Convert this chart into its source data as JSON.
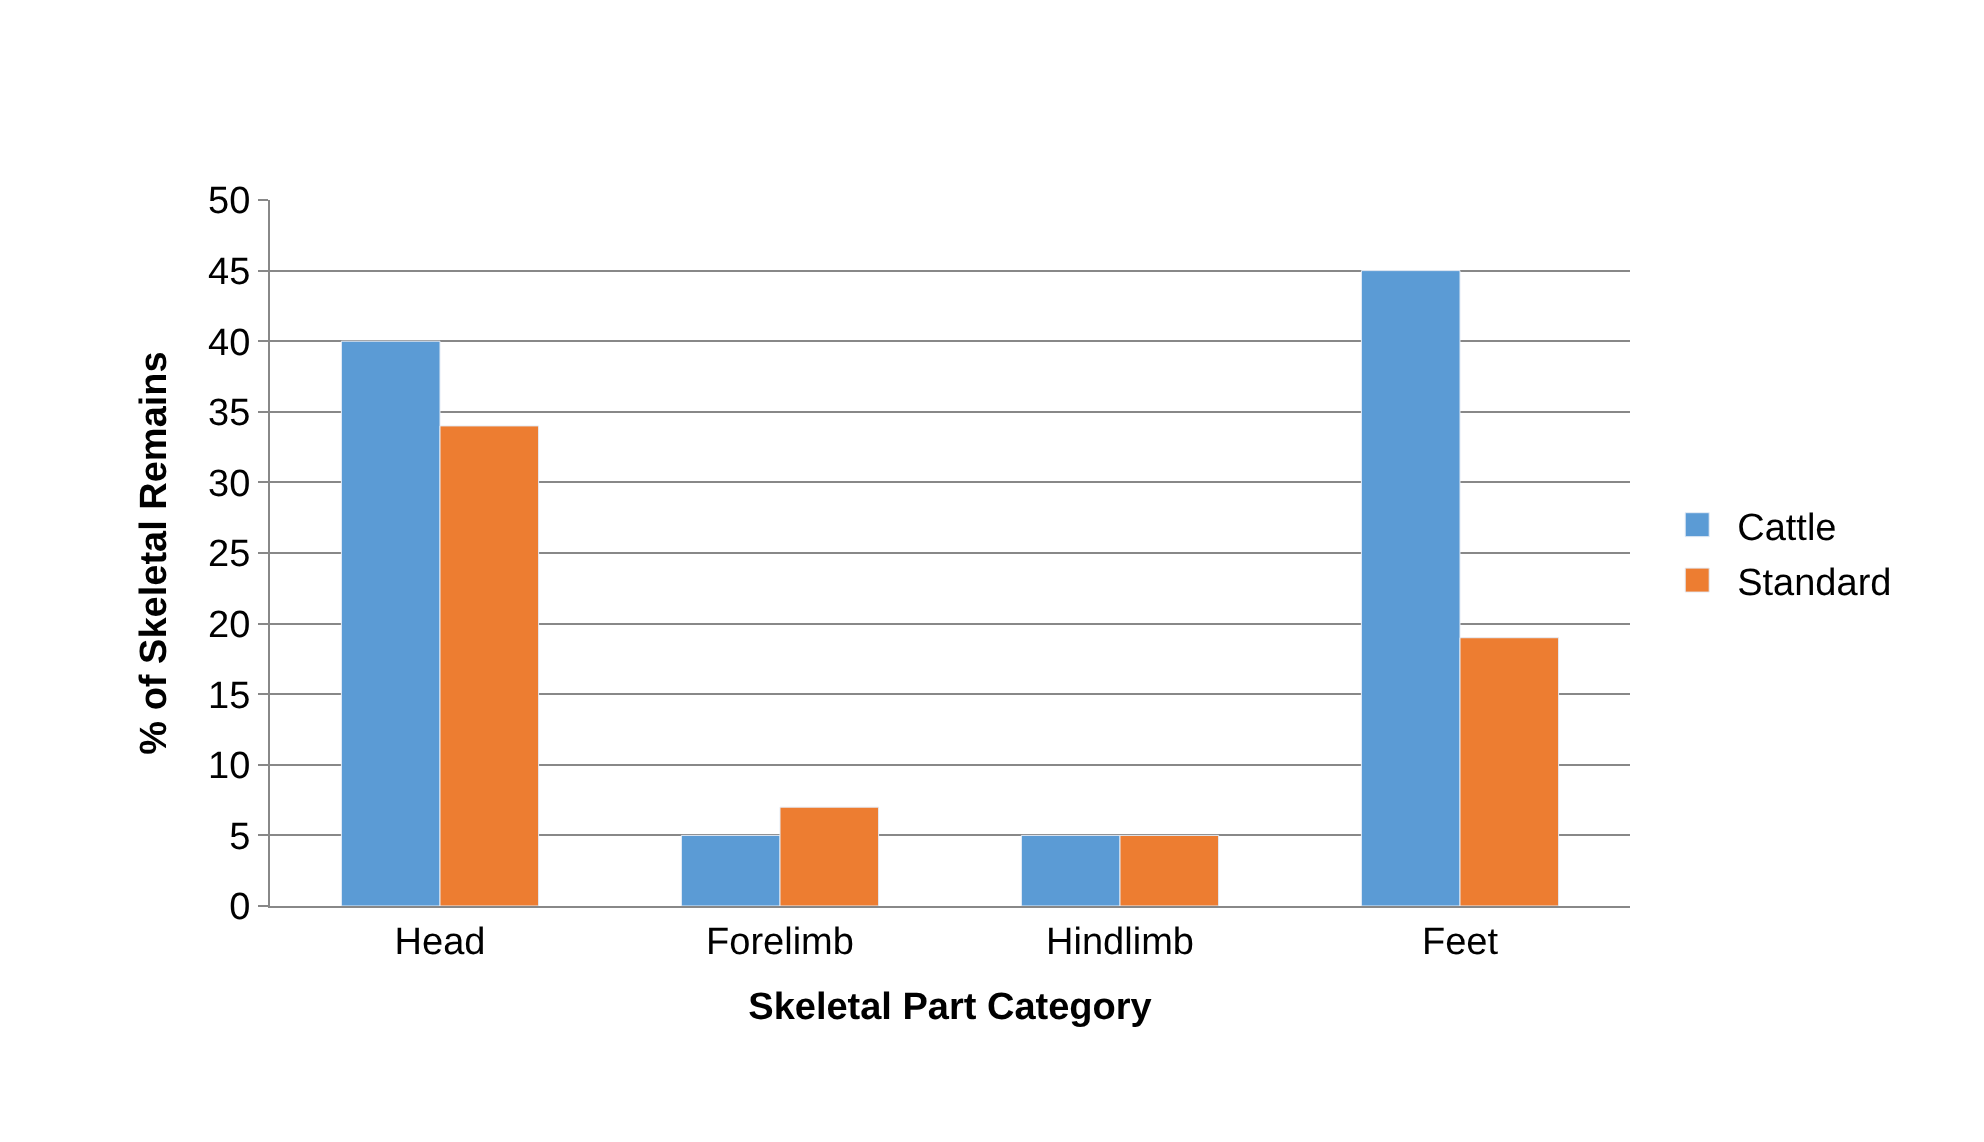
{
  "chart_data": {
    "type": "bar",
    "xlabel": "Skeletal Part Category",
    "ylabel": "% of Skeletal Remains",
    "categories": [
      "Head",
      "Forelimb",
      "Hindlimb",
      "Feet"
    ],
    "series": [
      {
        "name": "Cattle",
        "color": "#5b9bd5",
        "values": [
          40,
          5,
          5,
          45
        ]
      },
      {
        "name": "Standard",
        "color": "#ed7d31",
        "values": [
          34,
          7,
          5,
          19
        ]
      }
    ],
    "ylim": [
      0,
      50
    ],
    "yticks": [
      0,
      5,
      10,
      15,
      20,
      25,
      30,
      35,
      40,
      45,
      50
    ],
    "grid": "y",
    "legend": "right"
  }
}
